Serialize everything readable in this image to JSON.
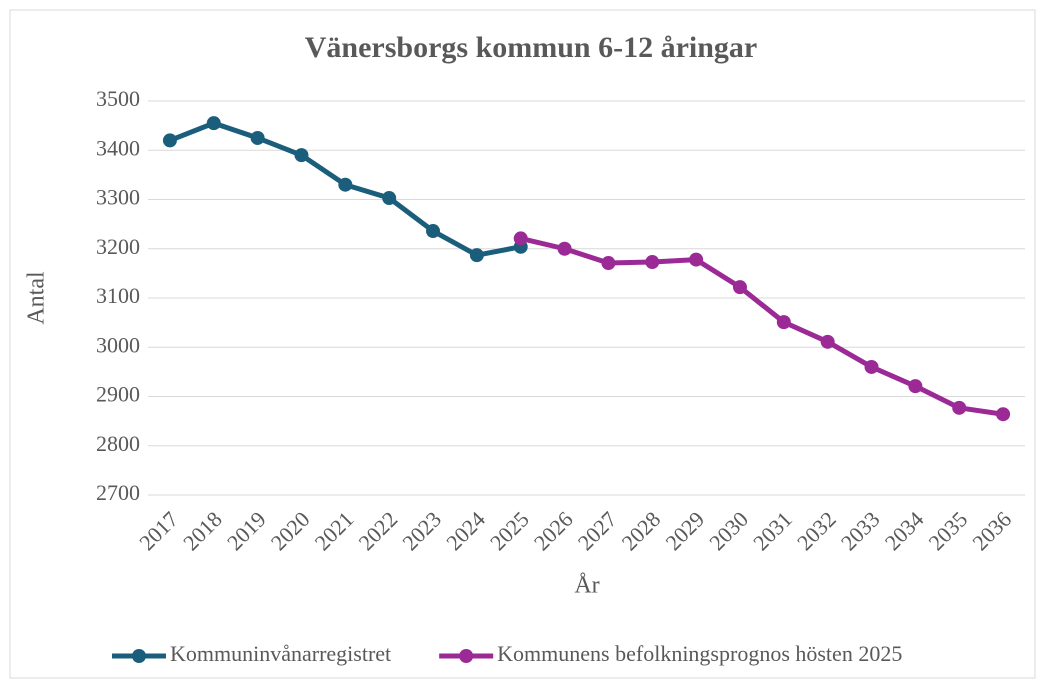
{
  "chart_data": {
    "type": "line",
    "title": "Vänersborgs kommun 6-12 åringar",
    "x_label": "År",
    "y_label": "Antal",
    "categories": [
      "2017",
      "2018",
      "2019",
      "2020",
      "2021",
      "2022",
      "2023",
      "2024",
      "2025",
      "2026",
      "2027",
      "2028",
      "2029",
      "2030",
      "2031",
      "2032",
      "2033",
      "2034",
      "2035",
      "2036"
    ],
    "series": [
      {
        "name": "Kommuninvånarregistret",
        "color": "#1b5e7b",
        "values": [
          3420,
          3455,
          3425,
          3390,
          3330,
          3303,
          3236,
          3187,
          3204,
          null,
          null,
          null,
          null,
          null,
          null,
          null,
          null,
          null,
          null,
          null
        ]
      },
      {
        "name": "Kommunens befolkningsprognos hösten 2025",
        "color": "#9b2a96",
        "values": [
          null,
          null,
          null,
          null,
          null,
          null,
          null,
          null,
          3221,
          3200,
          3171,
          3173,
          3178,
          3122,
          3051,
          3011,
          2960,
          2921,
          2877,
          2864
        ]
      }
    ],
    "ylim": [
      2700,
      3500
    ],
    "yticks": [
      2700,
      2800,
      2900,
      3000,
      3100,
      3200,
      3300,
      3400,
      3500
    ],
    "grid": true,
    "legend": "bottom"
  }
}
